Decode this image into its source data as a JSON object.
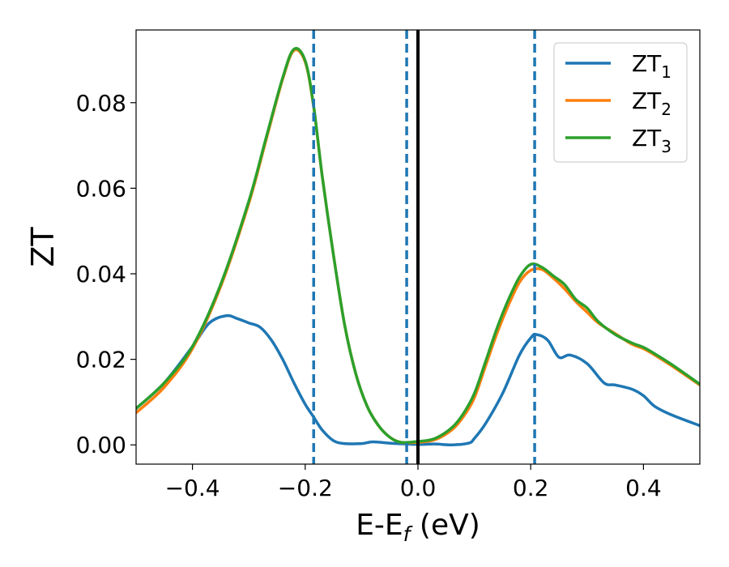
{
  "chart_data": {
    "type": "line",
    "xlabel_main": "E-E",
    "xlabel_sub": "f",
    "xlabel_unit": " (eV)",
    "ylabel": "ZT",
    "xlim": [
      -0.5,
      0.5
    ],
    "ylim": [
      -0.0045,
      0.097
    ],
    "x_ticks": [
      -0.4,
      -0.2,
      0.0,
      0.2,
      0.4
    ],
    "x_tick_labels": [
      "−0.4",
      "−0.2",
      "0.0",
      "0.2",
      "0.4"
    ],
    "y_ticks": [
      0.0,
      0.02,
      0.04,
      0.06,
      0.08
    ],
    "y_tick_labels": [
      "0.00",
      "0.02",
      "0.04",
      "0.06",
      "0.08"
    ],
    "legend_position": "top-right",
    "vertical_lines": [
      {
        "x": -0.185,
        "style": "dashed",
        "color": "#1f77b4"
      },
      {
        "x": -0.02,
        "style": "dashed",
        "color": "#1f77b4"
      },
      {
        "x": 0.0,
        "style": "solid",
        "color": "#000000"
      },
      {
        "x": 0.207,
        "style": "dashed",
        "color": "#1f77b4"
      }
    ],
    "series": [
      {
        "name": "ZT",
        "name_sub": "1",
        "color": "#1f77b4",
        "x": [
          -0.5,
          -0.45,
          -0.4,
          -0.37,
          -0.34,
          -0.32,
          -0.3,
          -0.28,
          -0.26,
          -0.24,
          -0.22,
          -0.2,
          -0.185,
          -0.17,
          -0.15,
          -0.13,
          -0.1,
          -0.08,
          -0.05,
          -0.02,
          0.0,
          0.03,
          0.06,
          0.09,
          0.1,
          0.12,
          0.15,
          0.18,
          0.2,
          0.21,
          0.23,
          0.25,
          0.27,
          0.3,
          0.33,
          0.35,
          0.38,
          0.4,
          0.42,
          0.45,
          0.5
        ],
        "y": [
          0.0085,
          0.0145,
          0.023,
          0.0285,
          0.0302,
          0.0295,
          0.0285,
          0.0275,
          0.0245,
          0.02,
          0.0145,
          0.0095,
          0.0065,
          0.0035,
          0.001,
          0.0003,
          0.0003,
          0.0007,
          0.0004,
          0.0002,
          0.0001,
          0.0002,
          0.0,
          0.0004,
          0.0015,
          0.005,
          0.012,
          0.021,
          0.025,
          0.0258,
          0.0245,
          0.0205,
          0.021,
          0.019,
          0.0145,
          0.014,
          0.013,
          0.0115,
          0.009,
          0.007,
          0.0045
        ]
      },
      {
        "name": "ZT",
        "name_sub": "2",
        "color": "#ff7f0e",
        "x": [
          -0.5,
          -0.45,
          -0.4,
          -0.35,
          -0.3,
          -0.27,
          -0.24,
          -0.22,
          -0.2,
          -0.185,
          -0.17,
          -0.15,
          -0.13,
          -0.11,
          -0.09,
          -0.07,
          -0.05,
          -0.03,
          0.0,
          0.03,
          0.06,
          0.08,
          0.1,
          0.12,
          0.14,
          0.16,
          0.18,
          0.2,
          0.22,
          0.24,
          0.26,
          0.28,
          0.3,
          0.32,
          0.35,
          0.38,
          0.4,
          0.42,
          0.45,
          0.5
        ],
        "y": [
          0.0075,
          0.0135,
          0.0225,
          0.037,
          0.0565,
          0.071,
          0.0855,
          0.0922,
          0.0895,
          0.079,
          0.063,
          0.0445,
          0.028,
          0.0165,
          0.009,
          0.0045,
          0.0018,
          0.0006,
          0.0006,
          0.0012,
          0.0035,
          0.0065,
          0.011,
          0.0185,
          0.026,
          0.0325,
          0.038,
          0.0408,
          0.041,
          0.039,
          0.0365,
          0.0335,
          0.031,
          0.0285,
          0.026,
          0.0235,
          0.0225,
          0.021,
          0.0185,
          0.014
        ]
      },
      {
        "name": "ZT",
        "name_sub": "3",
        "color": "#2ca02c",
        "x": [
          -0.5,
          -0.45,
          -0.4,
          -0.35,
          -0.3,
          -0.27,
          -0.24,
          -0.22,
          -0.2,
          -0.185,
          -0.17,
          -0.15,
          -0.13,
          -0.11,
          -0.09,
          -0.07,
          -0.05,
          -0.03,
          0.0,
          0.03,
          0.06,
          0.08,
          0.1,
          0.12,
          0.14,
          0.16,
          0.18,
          0.2,
          0.22,
          0.24,
          0.26,
          0.28,
          0.3,
          0.32,
          0.35,
          0.38,
          0.4,
          0.42,
          0.45,
          0.5
        ],
        "y": [
          0.0085,
          0.0145,
          0.023,
          0.0375,
          0.057,
          0.0715,
          0.0858,
          0.0925,
          0.0898,
          0.0792,
          0.063,
          0.0445,
          0.028,
          0.0165,
          0.009,
          0.0045,
          0.0018,
          0.0006,
          0.0008,
          0.0015,
          0.004,
          0.0072,
          0.012,
          0.0195,
          0.0272,
          0.0338,
          0.0392,
          0.0422,
          0.0415,
          0.0395,
          0.0375,
          0.034,
          0.032,
          0.0288,
          0.0258,
          0.0238,
          0.0228,
          0.0213,
          0.0188,
          0.0142
        ]
      }
    ]
  }
}
